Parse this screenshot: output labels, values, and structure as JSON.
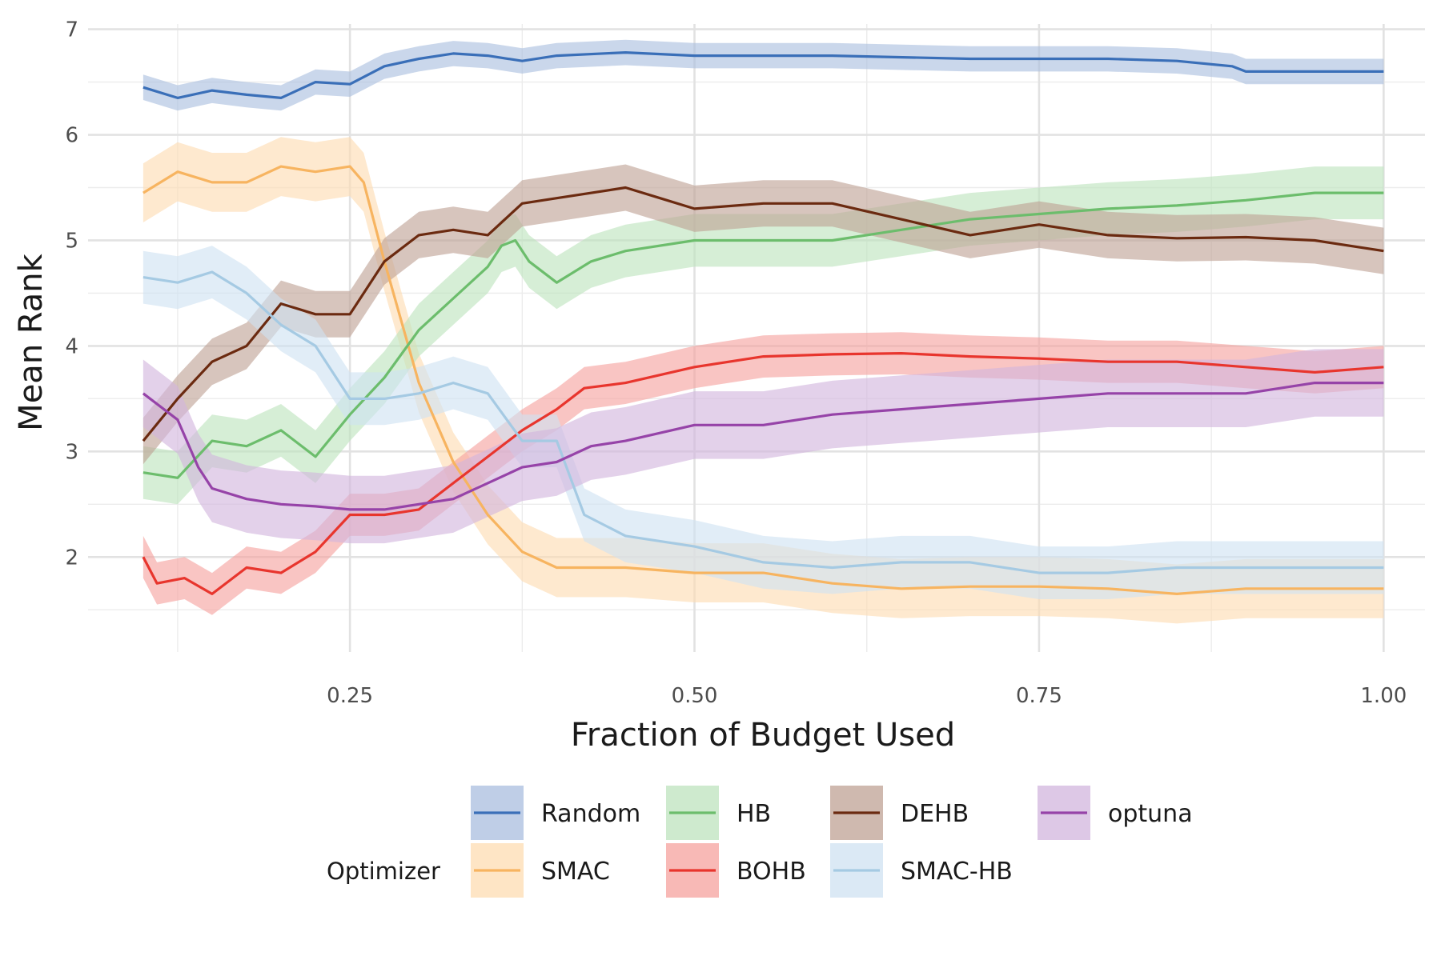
{
  "chart_data": {
    "type": "line",
    "xlabel": "Fraction of Budget Used",
    "ylabel": "Mean Rank",
    "xlim": [
      0.06,
      1.03
    ],
    "ylim": [
      1.1,
      7.05
    ],
    "xticks": [
      0.25,
      0.5,
      0.75,
      1.0
    ],
    "xtick_labels": [
      "0.25",
      "0.50",
      "0.75",
      "1.00"
    ],
    "yticks": [
      2,
      3,
      4,
      5,
      6,
      7
    ],
    "ytick_labels": [
      "2",
      "3",
      "4",
      "5",
      "6",
      "7"
    ],
    "grid": true,
    "legend": {
      "title": "Optimizer",
      "placement": "bottom"
    },
    "series": [
      {
        "name": "Random",
        "color": "#3a6fb8",
        "band_color": "#a9bedf",
        "band_halfwidth": 0.12,
        "points": [
          [
            0.1,
            6.45
          ],
          [
            0.125,
            6.35
          ],
          [
            0.15,
            6.42
          ],
          [
            0.175,
            6.38
          ],
          [
            0.2,
            6.35
          ],
          [
            0.225,
            6.5
          ],
          [
            0.25,
            6.48
          ],
          [
            0.275,
            6.65
          ],
          [
            0.3,
            6.72
          ],
          [
            0.325,
            6.77
          ],
          [
            0.35,
            6.75
          ],
          [
            0.375,
            6.7
          ],
          [
            0.4,
            6.75
          ],
          [
            0.45,
            6.78
          ],
          [
            0.5,
            6.75
          ],
          [
            0.6,
            6.75
          ],
          [
            0.7,
            6.72
          ],
          [
            0.8,
            6.72
          ],
          [
            0.85,
            6.7
          ],
          [
            0.89,
            6.65
          ],
          [
            0.9,
            6.6
          ],
          [
            1.0,
            6.6
          ]
        ]
      },
      {
        "name": "SMAC",
        "color": "#f7b460",
        "band_color": "#fddcb2",
        "band_halfwidth": 0.28,
        "points": [
          [
            0.1,
            5.45
          ],
          [
            0.125,
            5.65
          ],
          [
            0.15,
            5.55
          ],
          [
            0.175,
            5.55
          ],
          [
            0.2,
            5.7
          ],
          [
            0.225,
            5.65
          ],
          [
            0.25,
            5.7
          ],
          [
            0.26,
            5.55
          ],
          [
            0.275,
            4.8
          ],
          [
            0.3,
            3.65
          ],
          [
            0.325,
            2.9
          ],
          [
            0.35,
            2.4
          ],
          [
            0.375,
            2.05
          ],
          [
            0.4,
            1.9
          ],
          [
            0.45,
            1.9
          ],
          [
            0.5,
            1.85
          ],
          [
            0.55,
            1.85
          ],
          [
            0.6,
            1.75
          ],
          [
            0.65,
            1.7
          ],
          [
            0.7,
            1.72
          ],
          [
            0.75,
            1.72
          ],
          [
            0.8,
            1.7
          ],
          [
            0.85,
            1.65
          ],
          [
            0.9,
            1.7
          ],
          [
            0.95,
            1.7
          ],
          [
            1.0,
            1.7
          ]
        ]
      },
      {
        "name": "HB",
        "color": "#6cbd6c",
        "band_color": "#bde3bd",
        "band_halfwidth": 0.25,
        "points": [
          [
            0.1,
            2.8
          ],
          [
            0.125,
            2.75
          ],
          [
            0.15,
            3.1
          ],
          [
            0.175,
            3.05
          ],
          [
            0.2,
            3.2
          ],
          [
            0.225,
            2.95
          ],
          [
            0.25,
            3.35
          ],
          [
            0.275,
            3.7
          ],
          [
            0.3,
            4.15
          ],
          [
            0.325,
            4.45
          ],
          [
            0.35,
            4.75
          ],
          [
            0.36,
            4.95
          ],
          [
            0.37,
            5.0
          ],
          [
            0.38,
            4.8
          ],
          [
            0.4,
            4.6
          ],
          [
            0.425,
            4.8
          ],
          [
            0.45,
            4.9
          ],
          [
            0.5,
            5.0
          ],
          [
            0.55,
            5.0
          ],
          [
            0.6,
            5.0
          ],
          [
            0.65,
            5.1
          ],
          [
            0.7,
            5.2
          ],
          [
            0.75,
            5.25
          ],
          [
            0.8,
            5.3
          ],
          [
            0.85,
            5.33
          ],
          [
            0.9,
            5.38
          ],
          [
            0.95,
            5.45
          ],
          [
            1.0,
            5.45
          ]
        ]
      },
      {
        "name": "BOHB",
        "color": "#e8352d",
        "band_color": "#f5a29e",
        "band_halfwidth": 0.2,
        "points": [
          [
            0.1,
            2.0
          ],
          [
            0.11,
            1.75
          ],
          [
            0.13,
            1.8
          ],
          [
            0.15,
            1.65
          ],
          [
            0.175,
            1.9
          ],
          [
            0.2,
            1.85
          ],
          [
            0.225,
            2.05
          ],
          [
            0.25,
            2.4
          ],
          [
            0.275,
            2.4
          ],
          [
            0.3,
            2.45
          ],
          [
            0.325,
            2.7
          ],
          [
            0.35,
            2.95
          ],
          [
            0.375,
            3.2
          ],
          [
            0.4,
            3.4
          ],
          [
            0.42,
            3.6
          ],
          [
            0.45,
            3.65
          ],
          [
            0.5,
            3.8
          ],
          [
            0.55,
            3.9
          ],
          [
            0.6,
            3.92
          ],
          [
            0.65,
            3.93
          ],
          [
            0.7,
            3.9
          ],
          [
            0.75,
            3.88
          ],
          [
            0.8,
            3.85
          ],
          [
            0.85,
            3.85
          ],
          [
            0.9,
            3.8
          ],
          [
            0.95,
            3.75
          ],
          [
            1.0,
            3.8
          ]
        ]
      },
      {
        "name": "DEHB",
        "color": "#6b2a10",
        "band_color": "#bfa194",
        "band_halfwidth": 0.22,
        "points": [
          [
            0.1,
            3.1
          ],
          [
            0.125,
            3.5
          ],
          [
            0.15,
            3.85
          ],
          [
            0.175,
            4.0
          ],
          [
            0.2,
            4.4
          ],
          [
            0.225,
            4.3
          ],
          [
            0.25,
            4.3
          ],
          [
            0.275,
            4.8
          ],
          [
            0.3,
            5.05
          ],
          [
            0.325,
            5.1
          ],
          [
            0.35,
            5.05
          ],
          [
            0.375,
            5.35
          ],
          [
            0.4,
            5.4
          ],
          [
            0.45,
            5.5
          ],
          [
            0.475,
            5.4
          ],
          [
            0.5,
            5.3
          ],
          [
            0.55,
            5.35
          ],
          [
            0.6,
            5.35
          ],
          [
            0.65,
            5.2
          ],
          [
            0.7,
            5.05
          ],
          [
            0.75,
            5.15
          ],
          [
            0.8,
            5.05
          ],
          [
            0.85,
            5.02
          ],
          [
            0.9,
            5.03
          ],
          [
            0.95,
            5.0
          ],
          [
            1.0,
            4.9
          ]
        ]
      },
      {
        "name": "SMAC-HB",
        "color": "#a5cae3",
        "band_color": "#cfe2f2",
        "band_halfwidth": 0.25,
        "points": [
          [
            0.1,
            4.65
          ],
          [
            0.125,
            4.6
          ],
          [
            0.15,
            4.7
          ],
          [
            0.175,
            4.5
          ],
          [
            0.2,
            4.2
          ],
          [
            0.225,
            4.0
          ],
          [
            0.25,
            3.5
          ],
          [
            0.275,
            3.5
          ],
          [
            0.3,
            3.55
          ],
          [
            0.325,
            3.65
          ],
          [
            0.35,
            3.55
          ],
          [
            0.375,
            3.1
          ],
          [
            0.4,
            3.1
          ],
          [
            0.42,
            2.4
          ],
          [
            0.45,
            2.2
          ],
          [
            0.5,
            2.1
          ],
          [
            0.55,
            1.95
          ],
          [
            0.6,
            1.9
          ],
          [
            0.65,
            1.95
          ],
          [
            0.7,
            1.95
          ],
          [
            0.75,
            1.85
          ],
          [
            0.8,
            1.85
          ],
          [
            0.85,
            1.9
          ],
          [
            0.9,
            1.9
          ],
          [
            0.95,
            1.9
          ],
          [
            1.0,
            1.9
          ]
        ]
      },
      {
        "name": "optuna",
        "color": "#9643a8",
        "band_color": "#d2b5dd",
        "band_halfwidth": 0.32,
        "points": [
          [
            0.1,
            3.55
          ],
          [
            0.125,
            3.3
          ],
          [
            0.14,
            2.85
          ],
          [
            0.15,
            2.65
          ],
          [
            0.175,
            2.55
          ],
          [
            0.2,
            2.5
          ],
          [
            0.225,
            2.48
          ],
          [
            0.25,
            2.45
          ],
          [
            0.275,
            2.45
          ],
          [
            0.3,
            2.5
          ],
          [
            0.325,
            2.55
          ],
          [
            0.35,
            2.7
          ],
          [
            0.375,
            2.85
          ],
          [
            0.4,
            2.9
          ],
          [
            0.425,
            3.05
          ],
          [
            0.45,
            3.1
          ],
          [
            0.5,
            3.25
          ],
          [
            0.55,
            3.25
          ],
          [
            0.6,
            3.35
          ],
          [
            0.65,
            3.4
          ],
          [
            0.7,
            3.45
          ],
          [
            0.75,
            3.5
          ],
          [
            0.8,
            3.55
          ],
          [
            0.85,
            3.55
          ],
          [
            0.9,
            3.55
          ],
          [
            0.95,
            3.65
          ],
          [
            1.0,
            3.65
          ]
        ]
      }
    ]
  }
}
